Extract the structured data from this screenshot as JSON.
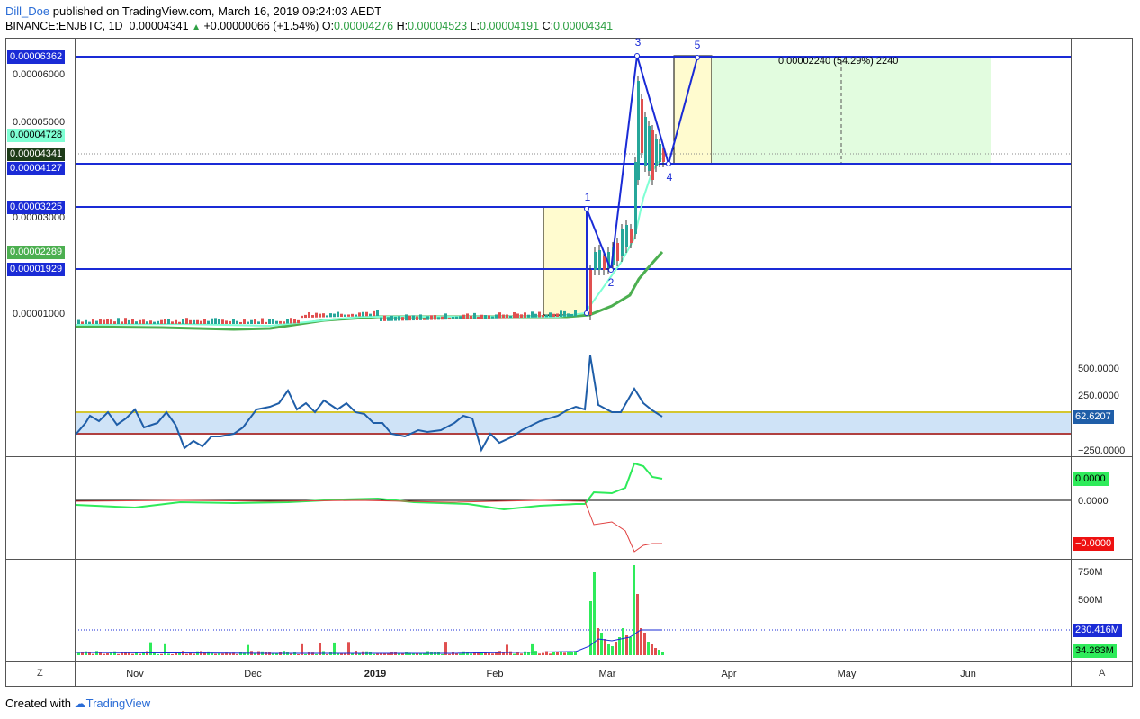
{
  "header": {
    "user": "Dill_Doe",
    "published": " published on TradingView.com, March 16, 2019 09:24:03 AEDT",
    "symbol": "BINANCE:ENJBTC, 1D",
    "last": "0.00004341",
    "change": "+0.00000066 (+1.54%)",
    "open_label": "O:",
    "open": "0.00004276",
    "high_label": "H:",
    "high": "0.00004523",
    "low_label": "L:",
    "low": "0.00004191",
    "close_label": "C:",
    "close": "0.00004341"
  },
  "price_axis": {
    "ticks": [
      "0.00006000",
      "0.00005000",
      "0.00003000",
      "0.00001000"
    ],
    "labels": [
      {
        "text": "0.00006362",
        "bg": "#1a2bd6",
        "fg": "#ffffff"
      },
      {
        "text": "0.00004728",
        "bg": "#7fffd4",
        "fg": "#000000"
      },
      {
        "text": "0.00004341",
        "bg": "#1d3b18",
        "fg": "#ffffff"
      },
      {
        "text": "0.00004127",
        "bg": "#1a2bd6",
        "fg": "#ffffff"
      },
      {
        "text": "0.00003225",
        "bg": "#1a2bd6",
        "fg": "#ffffff"
      },
      {
        "text": "0.00002289",
        "bg": "#4caf50",
        "fg": "#ffffff"
      },
      {
        "text": "0.00001929",
        "bg": "#1a2bd6",
        "fg": "#ffffff"
      }
    ]
  },
  "projection_annotation": "0.00002240 (54.29%) 2240",
  "wave_labels": [
    "1",
    "2",
    "3",
    "4",
    "5"
  ],
  "cci_axis": {
    "ticks": [
      "500.0000",
      "250.0000",
      "−250.0000"
    ],
    "value": "62.6207"
  },
  "dmi_axis": {
    "tick": "0.0000",
    "plus": "0.0000",
    "minus": "−0.0000"
  },
  "volume_axis": {
    "ticks": [
      "750M",
      "500M"
    ],
    "ma": "230.416M",
    "vol": "34.283M"
  },
  "time_axis": [
    "Nov",
    "Dec",
    "2019",
    "Feb",
    "Mar",
    "Apr",
    "May",
    "Jun"
  ],
  "corner_left": "Z",
  "corner_right": "A",
  "footer": {
    "created": "Created with",
    "brand": "TradingView"
  },
  "colors": {
    "level": "#1a2bd6",
    "ema_fast": "#7fffd4",
    "ema_slow": "#4caf50",
    "up": "#26a69a",
    "down": "#e05050"
  }
}
